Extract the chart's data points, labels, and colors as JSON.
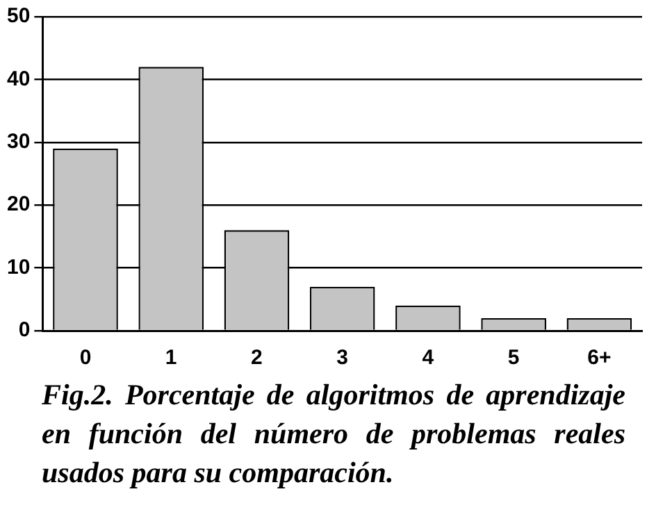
{
  "chart_data": {
    "type": "bar",
    "categories": [
      "0",
      "1",
      "2",
      "3",
      "4",
      "5",
      "6+"
    ],
    "values": [
      29,
      42,
      16,
      7,
      4,
      2,
      2
    ],
    "color": "#c4c4c4",
    "ylim": [
      0,
      50
    ],
    "yticks": [
      0,
      10,
      20,
      30,
      40,
      50
    ],
    "grid": "y",
    "legend": false,
    "annotations": [
      "Fig.2. Porcentaje de algoritmos de aprendizaje en función del número de problemas reales usados para su comparación."
    ]
  }
}
